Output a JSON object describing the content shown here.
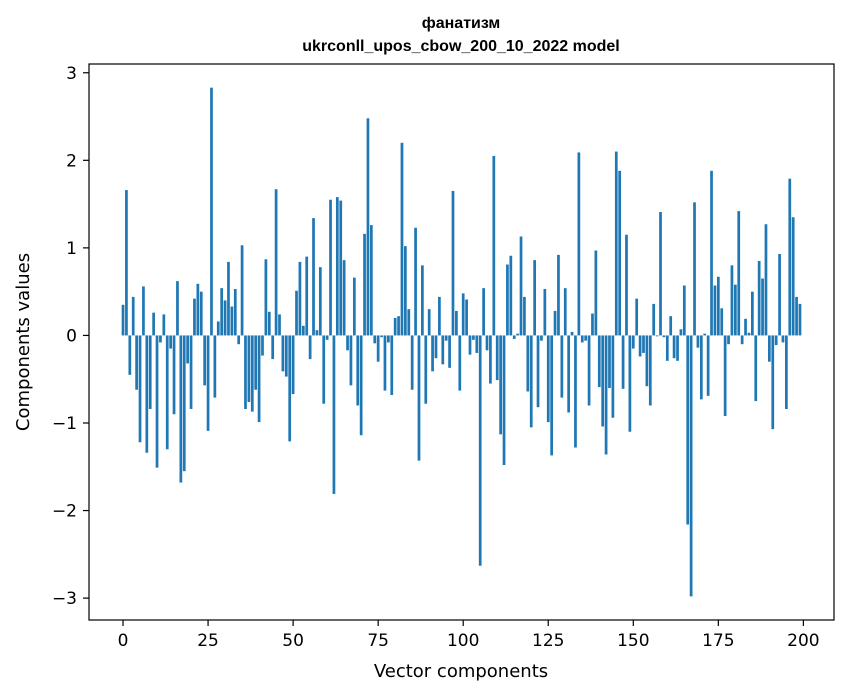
{
  "chart_data": {
    "type": "bar",
    "title": "фанатизм",
    "subtitle": "ukrconll_upos_cbow_200_10_2022 model",
    "xlabel": "Vector components",
    "ylabel": "Components values",
    "xlim": [
      -10,
      209
    ],
    "ylim": [
      -3.25,
      3.1
    ],
    "x_ticks": [
      0,
      25,
      50,
      75,
      100,
      125,
      150,
      175,
      200
    ],
    "y_ticks": [
      3,
      2,
      1,
      0,
      -1,
      -2,
      -3
    ],
    "y_tick_labels": [
      "3",
      "2",
      "1",
      "0",
      "−1",
      "−2",
      "−3"
    ],
    "grid": false,
    "bar_color": "#1f77b4",
    "values": [
      0.35,
      1.66,
      -0.45,
      0.44,
      -0.62,
      -1.22,
      0.56,
      -1.34,
      -0.84,
      0.26,
      -1.51,
      -0.08,
      0.24,
      -1.3,
      -0.15,
      -0.9,
      0.62,
      -1.68,
      -1.55,
      -0.32,
      -0.84,
      0.42,
      0.59,
      0.5,
      -0.57,
      -1.09,
      2.83,
      -0.71,
      0.16,
      0.54,
      0.4,
      0.84,
      0.33,
      0.53,
      -0.1,
      1.03,
      -0.84,
      -0.76,
      -0.87,
      -0.62,
      -0.99,
      -0.23,
      0.87,
      0.27,
      -0.27,
      1.67,
      0.24,
      -0.41,
      -0.47,
      -1.21,
      -0.67,
      0.51,
      0.84,
      0.11,
      0.9,
      -0.27,
      1.34,
      0.06,
      0.78,
      -0.78,
      -0.05,
      1.55,
      -1.81,
      1.58,
      1.54,
      0.86,
      -0.17,
      -0.57,
      0.66,
      -0.8,
      -1.14,
      1.16,
      2.48,
      1.26,
      -0.09,
      -0.3,
      -0.02,
      -0.63,
      -0.08,
      -0.68,
      0.2,
      0.22,
      2.2,
      1.02,
      0.3,
      -0.62,
      1.23,
      -1.43,
      0.8,
      -0.78,
      0.3,
      -0.41,
      -0.26,
      0.44,
      -0.33,
      -0.06,
      -0.37,
      1.65,
      0.28,
      -0.63,
      0.48,
      0.41,
      -0.22,
      -0.05,
      -0.2,
      -2.63,
      0.54,
      -0.17,
      -0.55,
      2.05,
      -0.51,
      -1.13,
      -1.48,
      0.81,
      0.91,
      -0.04,
      0.02,
      1.13,
      0.44,
      -0.64,
      -1.05,
      0.86,
      -0.82,
      -0.06,
      0.53,
      -0.99,
      -1.37,
      0.28,
      0.92,
      -0.71,
      0.54,
      -0.88,
      0.04,
      -1.28,
      2.09,
      -0.08,
      -0.06,
      -0.8,
      0.25,
      0.97,
      -0.59,
      -1.04,
      -1.36,
      -0.6,
      -0.94,
      2.1,
      1.88,
      -0.61,
      1.15,
      -1.1,
      -0.15,
      0.42,
      -0.24,
      -0.2,
      -0.58,
      -0.8,
      0.36,
      -0.01,
      1.41,
      -0.02,
      -0.29,
      0.22,
      -0.26,
      -0.29,
      0.07,
      0.57,
      -2.16,
      -2.98,
      1.52,
      -0.14,
      -0.73,
      0.02,
      -0.69,
      1.88,
      0.57,
      0.67,
      0.31,
      -0.92,
      -0.1,
      0.8,
      0.58,
      1.42,
      -0.1,
      0.19,
      0.03,
      0.5,
      -0.75,
      0.85,
      0.65,
      1.27,
      -0.3,
      -1.07,
      -0.11,
      0.93,
      -0.08,
      -0.84,
      1.79,
      1.35,
      0.44,
      0.36
    ]
  }
}
